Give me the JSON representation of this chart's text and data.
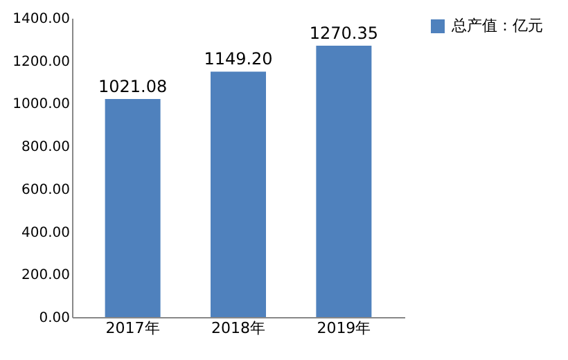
{
  "chart_data": {
    "type": "bar",
    "categories": [
      "2017年",
      "2018年",
      "2019年"
    ],
    "series": [
      {
        "name": "总产值：亿元",
        "color": "#4f81bd",
        "values": [
          1021.08,
          1149.2,
          1270.35
        ],
        "value_labels": [
          "1021.08",
          "1149.20",
          "1270.35"
        ]
      }
    ],
    "ylim": [
      0,
      1400
    ],
    "yticks": [
      {
        "value": 0,
        "label": "0.00"
      },
      {
        "value": 200,
        "label": "200.00"
      },
      {
        "value": 400,
        "label": "400.00"
      },
      {
        "value": 600,
        "label": "600.00"
      },
      {
        "value": 800,
        "label": "800.00"
      },
      {
        "value": 1000,
        "label": "1000.00"
      },
      {
        "value": 1200,
        "label": "1200.00"
      },
      {
        "value": 1400,
        "label": "1400.00"
      }
    ],
    "grid": false,
    "legend": "right"
  }
}
